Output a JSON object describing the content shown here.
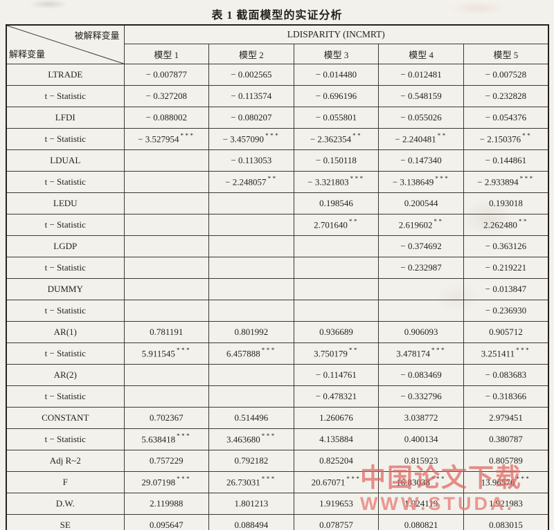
{
  "title": "表 1  截面模型的实证分析",
  "header": {
    "corner_top": "被解释变量",
    "corner_bottom": "解释变量",
    "dependent": "LDISPARITY (INCMRT)",
    "models": [
      "模型 1",
      "模型 2",
      "模型 3",
      "模型 4",
      "模型 5"
    ]
  },
  "rows": [
    {
      "label": "LTRADE",
      "cells": [
        "− 0.007877",
        "− 0.002565",
        "− 0.014480",
        "− 0.012481",
        "− 0.007528"
      ]
    },
    {
      "label": "t − Statistic",
      "cells": [
        "− 0.327208",
        "− 0.113574",
        "− 0.696196",
        "− 0.548159",
        "− 0.232828"
      ]
    },
    {
      "label": "LFDI",
      "cells": [
        "− 0.088002",
        "− 0.080207",
        "− 0.055801",
        "− 0.055026",
        "− 0.054376"
      ]
    },
    {
      "label": "t − Statistic",
      "cells": [
        "− 3.527954***",
        "− 3.457090***",
        "− 2.362354**",
        "− 2.240481**",
        "− 2.150376**"
      ]
    },
    {
      "label": "LDUAL",
      "cells": [
        "",
        "− 0.113053",
        "− 0.150118",
        "− 0.147340",
        "− 0.144861"
      ]
    },
    {
      "label": "t − Statistic",
      "cells": [
        "",
        "− 2.248057**",
        "− 3.321803***",
        "− 3.138649***",
        "− 2.933894***"
      ]
    },
    {
      "label": "LEDU",
      "cells": [
        "",
        "",
        "0.198546",
        "0.200544",
        "0.193018"
      ]
    },
    {
      "label": "t − Statistic",
      "cells": [
        "",
        "",
        "2.701640**",
        "2.619602**",
        "2.262480**"
      ]
    },
    {
      "label": "LGDP",
      "cells": [
        "",
        "",
        "",
        "− 0.374692",
        "− 0.363126"
      ]
    },
    {
      "label": "t − Statistic",
      "cells": [
        "",
        "",
        "",
        "− 0.232987",
        "− 0.219221"
      ]
    },
    {
      "label": "DUMMY",
      "cells": [
        "",
        "",
        "",
        "",
        "− 0.013847"
      ]
    },
    {
      "label": "t − Statistic",
      "cells": [
        "",
        "",
        "",
        "",
        "− 0.236930"
      ]
    },
    {
      "label": "AR(1)",
      "cells": [
        "0.781191",
        "0.801992",
        "0.936689",
        "0.906093",
        "0.905712"
      ]
    },
    {
      "label": "t − Statistic",
      "cells": [
        "5.911545***",
        "6.457888***",
        "3.750179**",
        "3.478174***",
        "3.251411***"
      ]
    },
    {
      "label": "AR(2)",
      "cells": [
        "",
        "",
        "− 0.114761",
        "− 0.083469",
        "− 0.083683"
      ]
    },
    {
      "label": "t − Statistic",
      "cells": [
        "",
        "",
        "− 0.478321",
        "− 0.332796",
        "− 0.318366"
      ]
    },
    {
      "label": "CONSTANT",
      "cells": [
        "0.702367",
        "0.514496",
        "1.260676",
        "3.038772",
        "2.979451"
      ]
    },
    {
      "label": "t − Statistic",
      "cells": [
        "5.638418***",
        "3.463680***",
        "4.135884",
        "0.400134",
        "0.380787"
      ]
    },
    {
      "label": "Adj R~2",
      "cells": [
        "0.757229",
        "0.792182",
        "0.825204",
        "0.815923",
        "0.805789"
      ]
    },
    {
      "label": "F",
      "cells": [
        "29.07198***",
        "26.73031***",
        "20.67071***",
        "16.83038***",
        "13.96576***"
      ]
    },
    {
      "label": "D.W.",
      "cells": [
        "2.119988",
        "1.801213",
        "1.919653",
        "1.924119",
        "1.921983"
      ]
    },
    {
      "label": "SE",
      "cells": [
        "0.095647",
        "0.088494",
        "0.078757",
        "0.080821",
        "0.083015"
      ]
    }
  ],
  "watermark": {
    "line1": "中国论文下载",
    "line2": "WWW.STUDA.",
    "color": "#de675f"
  }
}
